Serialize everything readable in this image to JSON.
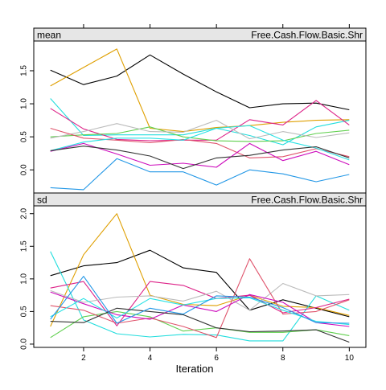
{
  "chart_data": [
    {
      "type": "line",
      "strip_left": "mean",
      "strip_right": "Free.Cash.Flow.Basic.Shr",
      "xlabel": "Iteration",
      "x": [
        1,
        2,
        3,
        4,
        5,
        6,
        7,
        8,
        9,
        10
      ],
      "xlim": [
        0.5,
        10.5
      ],
      "ylim": [
        -0.35,
        1.95
      ],
      "yticks": [
        0.0,
        0.5,
        1.0,
        1.5
      ],
      "ytick_labels": [
        "0.0",
        "0.5",
        "1.0",
        "1.5"
      ],
      "series": [
        {
          "color": "#000000",
          "values": [
            1.51,
            1.29,
            1.42,
            1.74,
            1.45,
            1.18,
            0.94,
            1.0,
            1.01,
            0.91
          ]
        },
        {
          "color": "#DF9F00",
          "values": [
            1.27,
            1.55,
            1.83,
            0.63,
            0.58,
            0.64,
            0.67,
            0.72,
            0.75,
            0.76
          ]
        },
        {
          "color": "#22DDDD",
          "values": [
            1.08,
            0.52,
            0.53,
            0.53,
            0.53,
            0.63,
            0.52,
            0.38,
            0.65,
            0.75
          ]
        },
        {
          "color": "#DD2288",
          "values": [
            0.93,
            0.62,
            0.46,
            0.44,
            0.45,
            0.45,
            0.76,
            0.68,
            1.05,
            0.68
          ]
        },
        {
          "color": "#61D04F",
          "values": [
            0.5,
            0.53,
            0.55,
            0.65,
            0.5,
            0.44,
            0.43,
            0.44,
            0.55,
            0.6
          ]
        },
        {
          "color": "#BBBBBB",
          "values": [
            0.48,
            0.58,
            0.7,
            0.58,
            0.57,
            0.75,
            0.47,
            0.58,
            0.49,
            0.56
          ]
        },
        {
          "color": "#DF536B",
          "values": [
            0.63,
            0.48,
            0.45,
            0.41,
            0.46,
            0.4,
            0.18,
            0.2,
            0.32,
            0.2
          ]
        },
        {
          "color": "#CD0BBC",
          "values": [
            0.28,
            0.4,
            0.24,
            0.07,
            0.1,
            0.04,
            0.4,
            0.14,
            0.28,
            0.08
          ]
        },
        {
          "color": "#28E2E5",
          "values": [
            0.29,
            0.42,
            0.48,
            0.48,
            0.45,
            0.63,
            0.67,
            0.45,
            0.33,
            0.15
          ]
        },
        {
          "color": "#333333",
          "values": [
            0.29,
            0.36,
            0.3,
            0.21,
            0.02,
            0.18,
            0.22,
            0.3,
            0.35,
            0.18
          ]
        },
        {
          "color": "#2297E6",
          "values": [
            -0.27,
            -0.3,
            0.17,
            -0.03,
            -0.03,
            -0.23,
            0.0,
            -0.06,
            -0.18,
            -0.07
          ]
        }
      ]
    },
    {
      "type": "line",
      "strip_left": "sd",
      "strip_right": "Free.Cash.Flow.Basic.Shr",
      "xlabel": "Iteration",
      "x": [
        1,
        2,
        3,
        4,
        5,
        6,
        7,
        8,
        9,
        10
      ],
      "xlim": [
        0.5,
        10.5
      ],
      "ylim": [
        -0.05,
        2.12
      ],
      "yticks": [
        0.0,
        0.5,
        1.0,
        1.5,
        2.0
      ],
      "ytick_labels": [
        "0.0",
        "0.5",
        "1.0",
        "1.5",
        "2.0"
      ],
      "series": [
        {
          "color": "#000000",
          "values": [
            1.05,
            1.2,
            1.25,
            1.44,
            1.17,
            1.1,
            0.52,
            0.68,
            0.55,
            0.42
          ]
        },
        {
          "color": "#DF9F00",
          "values": [
            0.27,
            1.37,
            2.0,
            0.75,
            0.61,
            0.59,
            0.75,
            0.58,
            0.56,
            0.44
          ]
        },
        {
          "color": "#22DDDD",
          "values": [
            1.42,
            0.37,
            0.16,
            0.11,
            0.15,
            0.14,
            0.05,
            0.05,
            0.74,
            0.52
          ]
        },
        {
          "color": "#DD2288",
          "values": [
            0.86,
            0.96,
            0.28,
            0.96,
            0.9,
            0.7,
            0.75,
            0.48,
            0.56,
            0.69
          ]
        },
        {
          "color": "#61D04F",
          "values": [
            0.1,
            0.42,
            0.5,
            0.42,
            0.2,
            0.25,
            0.18,
            0.18,
            0.22,
            0.13
          ]
        },
        {
          "color": "#BBBBBB",
          "values": [
            0.82,
            0.64,
            0.72,
            0.74,
            0.66,
            0.81,
            0.52,
            0.93,
            0.74,
            0.76
          ]
        },
        {
          "color": "#DF536B",
          "values": [
            0.59,
            0.52,
            0.32,
            0.4,
            0.27,
            0.1,
            1.31,
            0.46,
            0.5,
            0.68
          ]
        },
        {
          "color": "#CD0BBC",
          "values": [
            0.8,
            0.62,
            0.45,
            0.38,
            0.6,
            0.5,
            0.76,
            0.64,
            0.33,
            0.27
          ]
        },
        {
          "color": "#28E2E5",
          "values": [
            0.42,
            0.7,
            0.4,
            0.7,
            0.6,
            0.7,
            0.71,
            0.52,
            0.35,
            0.3
          ]
        },
        {
          "color": "#333333",
          "values": [
            0.35,
            0.33,
            0.55,
            0.5,
            0.45,
            0.25,
            0.19,
            0.2,
            0.22,
            0.03
          ]
        },
        {
          "color": "#2297E6",
          "values": [
            0.38,
            1.04,
            0.32,
            0.55,
            0.46,
            0.74,
            0.72,
            0.56,
            0.33,
            0.32
          ]
        }
      ]
    }
  ]
}
